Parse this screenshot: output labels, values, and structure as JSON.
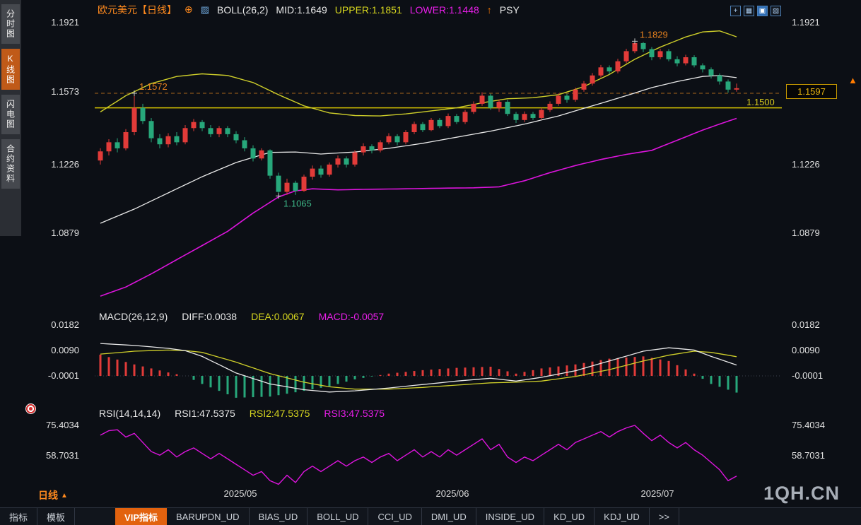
{
  "icons": {
    "plus_circle": "⊕",
    "mini_chart": "▨",
    "alert_arrow": "↑",
    "win_cross": "+",
    "win_grid": "▦",
    "win_active": "▣",
    "win_expand": "▧",
    "triangle_up": "▲",
    "more": ">>"
  },
  "sidebar": {
    "items": [
      {
        "label": "分时图",
        "active": false
      },
      {
        "label": "K线图",
        "active": true
      },
      {
        "label": "闪电图",
        "active": false
      },
      {
        "label": "合约资料",
        "active": false
      }
    ]
  },
  "header": {
    "symbol": "欧元美元【日线】",
    "boll": "BOLL(26,2)",
    "mid": "MID:1.1649",
    "upper": "UPPER:1.1851",
    "lower": "LOWER:1.1448",
    "psy": "PSY"
  },
  "main_chart": {
    "axis_left": [
      "1.1921",
      "1.1573",
      "1.1226",
      "1.0879"
    ],
    "axis_right": [
      "1.1921",
      "1.1226",
      "1.0879"
    ],
    "support_label": "1.1500",
    "price_tag": "1.1597"
  },
  "macd": {
    "title": "MACD(26,12,9)",
    "diff": "DIFF:0.0038",
    "dea": "DEA:0.0067",
    "macd": "MACD:-0.0057",
    "axis": [
      "0.0182",
      "0.0090",
      "-0.0001"
    ]
  },
  "rsi": {
    "title": "RSI(14,14,14)",
    "r1": "RSI1:47.5375",
    "r2": "RSI2:47.5375",
    "r3": "RSI3:47.5375",
    "axis": [
      "75.4034",
      "58.7031"
    ]
  },
  "xaxis": {
    "months": [
      "2025/05",
      "2025/06",
      "2025/07"
    ],
    "period": "日线"
  },
  "watermark": "1QH.CN",
  "tabs": [
    "指标",
    "模板",
    "VIP指标",
    "BARUPDN_UD",
    "BIAS_UD",
    "BOLL_UD",
    "CCI_UD",
    "DMI_UD",
    "INSIDE_UD",
    "KD_UD",
    "KDJ_UD",
    ">>"
  ],
  "colors": {
    "up": "#e23b39",
    "down": "#27a87b",
    "boll_upper": "#cfcf2a",
    "boll_mid": "#e9e9e9",
    "boll_lower": "#dd14dd",
    "support": "#d6c400",
    "dashed": "#a9661c",
    "annotation_orange": "#e8821e",
    "annotation_green": "#3db586",
    "diff": "#e9e9e9",
    "dea": "#cfcf2a",
    "rsi3": "#dd14dd",
    "accent_orange": "#ff8a1e"
  },
  "chart_data": {
    "type": "candlestick",
    "title": "欧元美元 日线 EUR/USD Daily with BOLL(26,2), MACD(26,12,9), RSI(14,14,14)",
    "x_months": [
      "2025/05",
      "2025/06",
      "2025/07"
    ],
    "price_axis": [
      1.1921,
      1.1573,
      1.1226,
      1.0879
    ],
    "levels": {
      "support": 1.15,
      "dashed": 1.1572,
      "last": 1.1597
    },
    "candles": [
      [
        1.124,
        1.13,
        1.122,
        1.1285
      ],
      [
        1.1285,
        1.1345,
        1.1265,
        1.133
      ],
      [
        1.133,
        1.135,
        1.128,
        1.13
      ],
      [
        1.13,
        1.1395,
        1.129,
        1.138
      ],
      [
        1.138,
        1.1572,
        1.1365,
        1.15
      ],
      [
        1.15,
        1.152,
        1.142,
        1.1435
      ],
      [
        1.1435,
        1.145,
        1.133,
        1.135
      ],
      [
        1.135,
        1.137,
        1.13,
        1.132
      ],
      [
        1.132,
        1.1375,
        1.1305,
        1.136
      ],
      [
        1.136,
        1.138,
        1.1315,
        1.133
      ],
      [
        1.133,
        1.1415,
        1.132,
        1.14
      ],
      [
        1.14,
        1.1445,
        1.1385,
        1.143
      ],
      [
        1.143,
        1.144,
        1.1385,
        1.14
      ],
      [
        1.14,
        1.1415,
        1.1355,
        1.137
      ],
      [
        1.137,
        1.141,
        1.1355,
        1.14
      ],
      [
        1.14,
        1.141,
        1.1355,
        1.137
      ],
      [
        1.137,
        1.1385,
        1.1325,
        1.134
      ],
      [
        1.134,
        1.1355,
        1.1285,
        1.13
      ],
      [
        1.13,
        1.1315,
        1.1235,
        1.125
      ],
      [
        1.125,
        1.13,
        1.124,
        1.129
      ],
      [
        1.129,
        1.1295,
        1.115,
        1.1165
      ],
      [
        1.1165,
        1.118,
        1.1065,
        1.1085
      ],
      [
        1.1085,
        1.115,
        1.107,
        1.113
      ],
      [
        1.113,
        1.114,
        1.107,
        1.109
      ],
      [
        1.109,
        1.117,
        1.1085,
        1.116
      ],
      [
        1.116,
        1.1215,
        1.1145,
        1.12
      ],
      [
        1.12,
        1.1215,
        1.1155,
        1.117
      ],
      [
        1.117,
        1.123,
        1.116,
        1.122
      ],
      [
        1.122,
        1.1265,
        1.1205,
        1.125
      ],
      [
        1.125,
        1.126,
        1.1205,
        1.122
      ],
      [
        1.122,
        1.129,
        1.121,
        1.128
      ],
      [
        1.128,
        1.1325,
        1.1265,
        1.131
      ],
      [
        1.131,
        1.132,
        1.1275,
        1.129
      ],
      [
        1.129,
        1.134,
        1.128,
        1.133
      ],
      [
        1.133,
        1.1375,
        1.132,
        1.136
      ],
      [
        1.136,
        1.137,
        1.1315,
        1.133
      ],
      [
        1.133,
        1.139,
        1.132,
        1.138
      ],
      [
        1.138,
        1.1432,
        1.137,
        1.142
      ],
      [
        1.142,
        1.143,
        1.138,
        1.139
      ],
      [
        1.139,
        1.145,
        1.1385,
        1.144
      ],
      [
        1.144,
        1.145,
        1.14,
        1.141
      ],
      [
        1.141,
        1.1472,
        1.14,
        1.146
      ],
      [
        1.146,
        1.147,
        1.142,
        1.143
      ],
      [
        1.143,
        1.149,
        1.142,
        1.148
      ],
      [
        1.148,
        1.1532,
        1.147,
        1.152
      ],
      [
        1.152,
        1.1577,
        1.151,
        1.156
      ],
      [
        1.156,
        1.157,
        1.149,
        1.15
      ],
      [
        1.15,
        1.1542,
        1.148,
        1.153
      ],
      [
        1.153,
        1.154,
        1.146,
        1.147
      ],
      [
        1.147,
        1.148,
        1.1425,
        1.144
      ],
      [
        1.144,
        1.1482,
        1.143,
        1.147
      ],
      [
        1.147,
        1.148,
        1.144,
        1.145
      ],
      [
        1.145,
        1.15,
        1.144,
        1.149
      ],
      [
        1.149,
        1.1532,
        1.148,
        1.152
      ],
      [
        1.152,
        1.1572,
        1.151,
        1.156
      ],
      [
        1.156,
        1.157,
        1.1525,
        1.154
      ],
      [
        1.154,
        1.16,
        1.153,
        1.159
      ],
      [
        1.159,
        1.1632,
        1.158,
        1.162
      ],
      [
        1.162,
        1.1672,
        1.161,
        1.166
      ],
      [
        1.166,
        1.1712,
        1.165,
        1.17
      ],
      [
        1.17,
        1.171,
        1.1665,
        1.168
      ],
      [
        1.168,
        1.1742,
        1.167,
        1.173
      ],
      [
        1.173,
        1.1792,
        1.172,
        1.178
      ],
      [
        1.178,
        1.1829,
        1.177,
        1.182
      ],
      [
        1.182,
        1.1825,
        1.1775,
        1.179
      ],
      [
        1.179,
        1.18,
        1.1735,
        1.175
      ],
      [
        1.175,
        1.1792,
        1.174,
        1.178
      ],
      [
        1.178,
        1.179,
        1.173,
        1.174
      ],
      [
        1.174,
        1.1755,
        1.1705,
        1.172
      ],
      [
        1.172,
        1.1762,
        1.171,
        1.175
      ],
      [
        1.175,
        1.176,
        1.17,
        1.171
      ],
      [
        1.171,
        1.172,
        1.1675,
        1.169
      ],
      [
        1.169,
        1.17,
        1.1645,
        1.166
      ],
      [
        1.166,
        1.167,
        1.1615,
        1.163
      ],
      [
        1.163,
        1.164,
        1.1575,
        1.159
      ],
      [
        1.159,
        1.162,
        1.158,
        1.1597
      ]
    ],
    "boll_mid": [
      [
        0,
        1.093
      ],
      [
        4,
        1.1
      ],
      [
        8,
        1.108
      ],
      [
        12,
        1.116
      ],
      [
        16,
        1.123
      ],
      [
        20,
        1.128
      ],
      [
        23,
        1.1282
      ],
      [
        26,
        1.1272
      ],
      [
        30,
        1.1282
      ],
      [
        34,
        1.13
      ],
      [
        38,
        1.1325
      ],
      [
        42,
        1.1355
      ],
      [
        46,
        1.1385
      ],
      [
        50,
        1.142
      ],
      [
        54,
        1.146
      ],
      [
        58,
        1.151
      ],
      [
        62,
        1.156
      ],
      [
        65,
        1.16
      ],
      [
        68,
        1.163
      ],
      [
        71,
        1.1655
      ],
      [
        73,
        1.166
      ],
      [
        75,
        1.1649
      ]
    ],
    "boll_upper": [
      [
        0,
        1.148
      ],
      [
        3,
        1.156
      ],
      [
        6,
        1.162
      ],
      [
        9,
        1.1655
      ],
      [
        12,
        1.1668
      ],
      [
        15,
        1.166
      ],
      [
        18,
        1.1625
      ],
      [
        21,
        1.1565
      ],
      [
        24,
        1.151
      ],
      [
        27,
        1.1475
      ],
      [
        30,
        1.1462
      ],
      [
        33,
        1.146
      ],
      [
        36,
        1.147
      ],
      [
        39,
        1.1485
      ],
      [
        42,
        1.15
      ],
      [
        45,
        1.1525
      ],
      [
        48,
        1.1545
      ],
      [
        51,
        1.155
      ],
      [
        54,
        1.1565
      ],
      [
        57,
        1.1605
      ],
      [
        60,
        1.1665
      ],
      [
        63,
        1.174
      ],
      [
        66,
        1.18
      ],
      [
        69,
        1.185
      ],
      [
        71,
        1.1875
      ],
      [
        73,
        1.188
      ],
      [
        75,
        1.1851
      ]
    ],
    "boll_lower": [
      [
        0,
        1.057
      ],
      [
        3,
        1.0615
      ],
      [
        6,
        1.068
      ],
      [
        9,
        1.075
      ],
      [
        12,
        1.082
      ],
      [
        15,
        1.089
      ],
      [
        18,
        1.098
      ],
      [
        21,
        1.106
      ],
      [
        23,
        1.109
      ],
      [
        25,
        1.11
      ],
      [
        28,
        1.1095
      ],
      [
        32,
        1.1098
      ],
      [
        36,
        1.11
      ],
      [
        40,
        1.1103
      ],
      [
        44,
        1.1105
      ],
      [
        47,
        1.111
      ],
      [
        50,
        1.114
      ],
      [
        53,
        1.118
      ],
      [
        56,
        1.1215
      ],
      [
        59,
        1.1245
      ],
      [
        62,
        1.127
      ],
      [
        65,
        1.129
      ],
      [
        68,
        1.134
      ],
      [
        71,
        1.139
      ],
      [
        73,
        1.142
      ],
      [
        75,
        1.1448
      ]
    ],
    "annotations": [
      {
        "i": 4,
        "price": 1.1572,
        "label": "1.1572",
        "color": "annotation_orange",
        "side": "above"
      },
      {
        "i": 63,
        "price": 1.1829,
        "label": "1.1829",
        "color": "annotation_orange",
        "side": "above"
      },
      {
        "i": 21,
        "price": 1.1065,
        "label": "1.1065",
        "color": "annotation_green",
        "side": "below"
      }
    ],
    "macd": {
      "axis": [
        0.0182,
        0.009,
        -0.0001
      ],
      "current": {
        "diff": 0.0038,
        "dea": 0.0067,
        "macd": -0.0057
      },
      "diff_keypoints": [
        [
          0,
          0.0113
        ],
        [
          4,
          0.0106
        ],
        [
          8,
          0.0096
        ],
        [
          10,
          0.0088
        ],
        [
          12,
          0.0068
        ],
        [
          16,
          0.001
        ],
        [
          20,
          -0.0028
        ],
        [
          24,
          -0.0048
        ],
        [
          27,
          -0.0056
        ],
        [
          30,
          -0.0052
        ],
        [
          34,
          -0.0042
        ],
        [
          38,
          -0.003
        ],
        [
          42,
          -0.0018
        ],
        [
          46,
          -0.0008
        ],
        [
          49,
          -0.0018
        ],
        [
          52,
          -0.0005
        ],
        [
          56,
          0.0018
        ],
        [
          60,
          0.0052
        ],
        [
          64,
          0.0086
        ],
        [
          67,
          0.0098
        ],
        [
          70,
          0.009
        ],
        [
          72,
          0.0068
        ],
        [
          75,
          0.0038
        ]
      ],
      "dea_keypoints": [
        [
          0,
          0.0076
        ],
        [
          4,
          0.0086
        ],
        [
          8,
          0.009
        ],
        [
          10,
          0.0088
        ],
        [
          12,
          0.0082
        ],
        [
          16,
          0.0048
        ],
        [
          20,
          0.0008
        ],
        [
          24,
          -0.0022
        ],
        [
          27,
          -0.0038
        ],
        [
          30,
          -0.0046
        ],
        [
          34,
          -0.0046
        ],
        [
          38,
          -0.004
        ],
        [
          42,
          -0.0032
        ],
        [
          46,
          -0.0024
        ],
        [
          49,
          -0.0022
        ],
        [
          52,
          -0.0018
        ],
        [
          56,
          -0.0002
        ],
        [
          60,
          0.0022
        ],
        [
          64,
          0.0052
        ],
        [
          67,
          0.0072
        ],
        [
          70,
          0.0086
        ],
        [
          72,
          0.0082
        ],
        [
          75,
          0.0067
        ]
      ]
    },
    "rsi": {
      "axis": [
        75.4034,
        58.7031
      ],
      "current": 47.5375,
      "points": [
        70,
        72.5,
        73,
        69,
        71,
        66,
        61,
        59,
        62,
        58,
        61,
        63,
        60,
        57,
        60,
        57,
        54,
        51,
        48,
        50,
        45,
        43,
        48,
        44,
        50,
        53,
        50,
        53,
        56,
        53,
        56,
        58,
        55,
        58,
        60,
        56,
        59,
        62,
        58,
        61,
        58,
        62,
        59,
        62,
        65,
        68,
        62,
        65,
        58,
        55,
        58,
        56,
        59,
        62,
        65,
        62,
        66,
        68,
        70,
        72,
        69,
        72,
        74,
        75.4,
        71,
        67,
        70,
        66,
        63,
        66,
        62,
        59,
        55,
        51,
        45,
        47.54
      ]
    }
  }
}
